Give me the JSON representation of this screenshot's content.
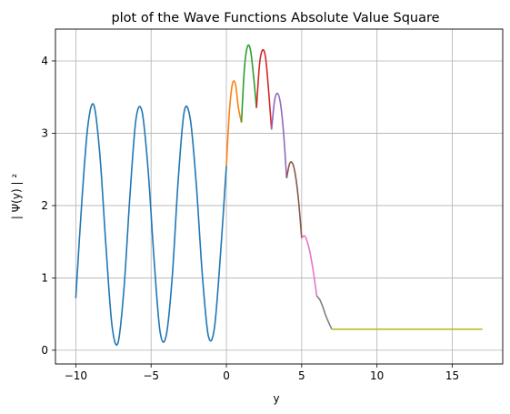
{
  "chart_data": {
    "type": "line",
    "title": "plot of the Wave Functions Absolute Value Square",
    "xlabel": "y",
    "ylabel": "| Ψ(y) | ²",
    "xlim": [
      -11.35,
      18.35
    ],
    "ylim": [
      -0.19,
      4.44
    ],
    "grid": true,
    "xticks": [
      -10,
      -5,
      0,
      5,
      10,
      15
    ],
    "xtick_labels": [
      "−10",
      "−5",
      "0",
      "5",
      "10",
      "15"
    ],
    "yticks": [
      0,
      1,
      2,
      3,
      4
    ],
    "ytick_labels": [
      "0",
      "1",
      "2",
      "3",
      "4"
    ],
    "series": [
      {
        "color": "#1f77b4",
        "x": [
          -10.0,
          -9.6,
          -9.2,
          -8.8,
          -8.4,
          -8.0,
          -7.6,
          -7.2,
          -6.8,
          -6.4,
          -6.0,
          -5.6,
          -5.2,
          -4.8,
          -4.4,
          -4.0,
          -3.6,
          -3.2,
          -2.8,
          -2.4,
          -2.0,
          -1.6,
          -1.2,
          -0.8,
          -0.4,
          0.0
        ],
        "y": [
          0.72,
          2.05,
          3.1,
          3.39,
          2.7,
          1.45,
          0.35,
          0.1,
          0.85,
          2.15,
          3.2,
          3.3,
          2.5,
          1.25,
          0.25,
          0.2,
          1.0,
          2.35,
          3.3,
          3.2,
          2.3,
          1.05,
          0.2,
          0.3,
          1.3,
          2.55
        ]
      },
      {
        "color": "#ff7f0e",
        "x": [
          0.0,
          0.2,
          0.4,
          0.6,
          0.8,
          1.0
        ],
        "y": [
          2.55,
          3.3,
          3.68,
          3.68,
          3.35,
          3.15
        ]
      },
      {
        "color": "#2ca02c",
        "x": [
          1.0,
          1.2,
          1.4,
          1.6,
          1.8,
          2.0
        ],
        "y": [
          3.15,
          3.9,
          4.2,
          4.15,
          3.8,
          3.35
        ]
      },
      {
        "color": "#d62728",
        "x": [
          2.0,
          2.2,
          2.4,
          2.6,
          2.8,
          3.0
        ],
        "y": [
          3.35,
          3.95,
          4.15,
          4.05,
          3.6,
          3.05
        ]
      },
      {
        "color": "#9467bd",
        "x": [
          3.0,
          3.2,
          3.4,
          3.6,
          3.8,
          4.0
        ],
        "y": [
          3.05,
          3.45,
          3.55,
          3.4,
          3.0,
          2.38
        ]
      },
      {
        "color": "#8c564b",
        "x": [
          4.0,
          4.2,
          4.4,
          4.6,
          4.8,
          5.0
        ],
        "y": [
          2.38,
          2.58,
          2.58,
          2.4,
          2.05,
          1.55
        ]
      },
      {
        "color": "#e377c2",
        "x": [
          5.0,
          5.2,
          5.4,
          5.6,
          5.8,
          6.0
        ],
        "y": [
          1.55,
          1.58,
          1.48,
          1.3,
          1.05,
          0.75
        ]
      },
      {
        "color": "#7f7f7f",
        "x": [
          6.0,
          6.2,
          6.4,
          6.6,
          6.8,
          7.0
        ],
        "y": [
          0.75,
          0.7,
          0.6,
          0.48,
          0.38,
          0.29
        ]
      },
      {
        "color": "#bcbd22",
        "x": [
          7.0,
          17.0
        ],
        "y": [
          0.29,
          0.29
        ]
      }
    ]
  }
}
